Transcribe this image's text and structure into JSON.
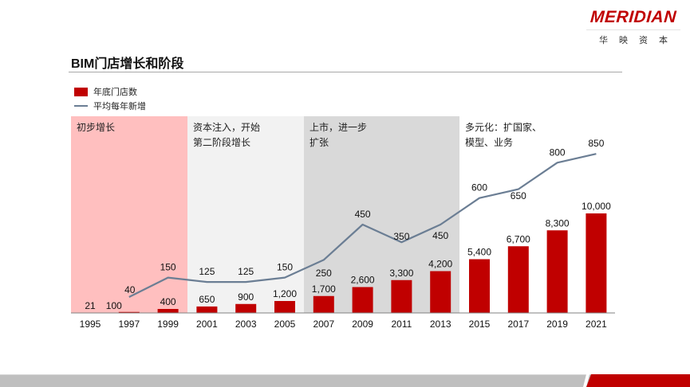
{
  "logo": {
    "brand": "MERIDIAN",
    "cn": "华映资本"
  },
  "header": {
    "title": "BIM门店增长和阶段"
  },
  "legend": {
    "bars": "年底门店数",
    "line": "平均每年新增"
  },
  "colors": {
    "bar": "#c00000",
    "line": "#6b7e94",
    "phase1": "#ffbfbf",
    "phase2": "#f2f2f2",
    "phase3": "#d9d9d9",
    "accent": "#c00000"
  },
  "phases": [
    {
      "label": "初步增长",
      "start": "1995",
      "end": "1999"
    },
    {
      "label": "资本注入，开始\n第二阶段增长",
      "start": "2001",
      "end": "2005"
    },
    {
      "label": "上市，进一步\n扩张",
      "start": "2007",
      "end": "2013"
    },
    {
      "label": "多元化：扩国家、\n模型、业务",
      "start": "2015",
      "end": "2021"
    }
  ],
  "chart_data": {
    "type": "bar",
    "title": "BIM门店增长和阶段",
    "categories": [
      "1995",
      "1997",
      "1999",
      "2001",
      "2003",
      "2005",
      "2007",
      "2009",
      "2011",
      "2013",
      "2015",
      "2017",
      "2019",
      "2021"
    ],
    "series": [
      {
        "name": "年底门店数",
        "type": "bar",
        "values": [
          21,
          100,
          400,
          650,
          900,
          1200,
          1700,
          2600,
          3300,
          4200,
          5400,
          6700,
          8300,
          10000
        ],
        "labels": [
          "21",
          "100",
          "400",
          "650",
          "900",
          "1,200",
          "1,700",
          "2,600",
          "3,300",
          "4,200",
          "5,400",
          "6,700",
          "8,300",
          "10,000"
        ]
      },
      {
        "name": "平均每年新增",
        "type": "line",
        "values": [
          null,
          40,
          150,
          125,
          125,
          150,
          250,
          450,
          350,
          450,
          600,
          650,
          800,
          850
        ],
        "labels": [
          "",
          "40",
          "150",
          "125",
          "125",
          "150",
          "250",
          "450",
          "350",
          "450",
          "600",
          "650",
          "800",
          "850"
        ]
      }
    ],
    "xlabel": "",
    "ylabel": "",
    "grid": false,
    "legend_position": "top-left",
    "annotations": [
      "初步增长",
      "资本注入，开始第二阶段增长",
      "上市，进一步扩张",
      "多元化：扩国家、模型、业务"
    ]
  }
}
